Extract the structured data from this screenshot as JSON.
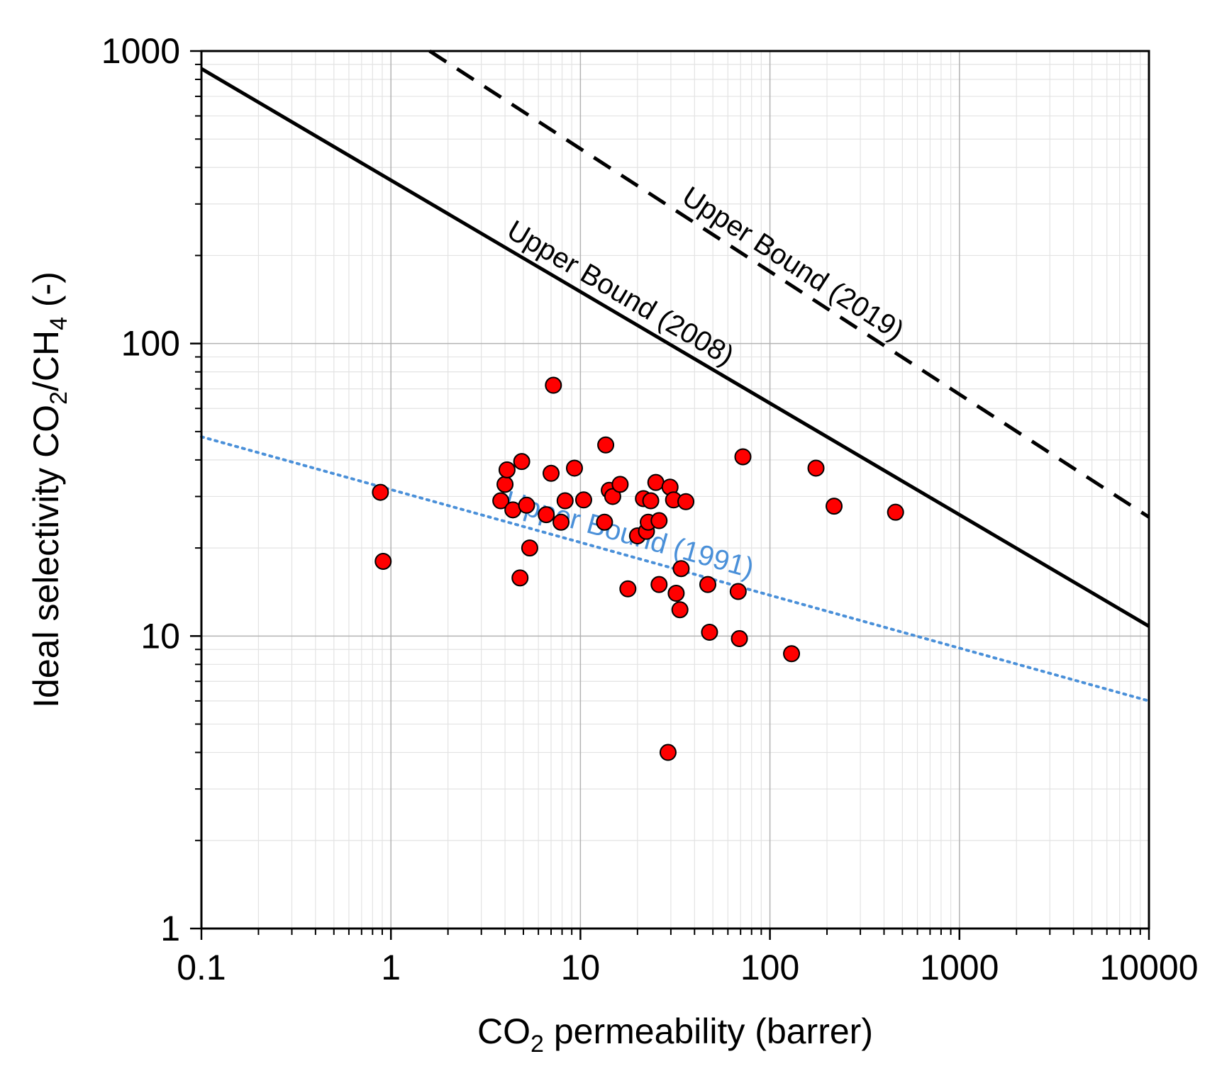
{
  "chart_data": {
    "type": "scatter",
    "xscale": "log",
    "yscale": "log",
    "xlim": [
      0.1,
      10000
    ],
    "ylim": [
      1,
      1000
    ],
    "grid": true,
    "x_ticks": [
      "0.1",
      "1",
      "10",
      "100",
      "1000",
      "10000"
    ],
    "y_ticks": [
      "1",
      "10",
      "100",
      "1000"
    ],
    "xlabel": {
      "pre": "CO",
      "sub": "2",
      "post": " permeability (barrer)"
    },
    "ylabel": {
      "a": "Ideal selectivity CO",
      "b": "2",
      "c": "/CH",
      "d": "4",
      "e": " (-)"
    },
    "upper_bounds": [
      {
        "name": "Upper Bound (1991)",
        "style": "dotted",
        "color": "#4a90d9",
        "points": [
          [
            0.1,
            48
          ],
          [
            10000,
            6
          ]
        ]
      },
      {
        "name": "Upper Bound (2008)",
        "style": "solid",
        "color": "#000000",
        "points": [
          [
            0.1,
            870
          ],
          [
            10000,
            10.8
          ]
        ]
      },
      {
        "name": "Upper Bound (2019)",
        "style": "dashed",
        "color": "#000000",
        "points": [
          [
            1.6,
            1000
          ],
          [
            10000,
            25.5
          ]
        ]
      }
    ],
    "points": [
      [
        0.88,
        31
      ],
      [
        0.91,
        18
      ],
      [
        7.2,
        72
      ],
      [
        3.8,
        29
      ],
      [
        4.0,
        33
      ],
      [
        4.1,
        37
      ],
      [
        4.4,
        27
      ],
      [
        4.9,
        39.5
      ],
      [
        5.2,
        28
      ],
      [
        5.4,
        20
      ],
      [
        4.8,
        15.8
      ],
      [
        6.6,
        26
      ],
      [
        7.0,
        36
      ],
      [
        7.9,
        24.5
      ],
      [
        8.3,
        29
      ],
      [
        9.3,
        37.5
      ],
      [
        10.4,
        29.2
      ],
      [
        13.6,
        45
      ],
      [
        13.4,
        24.5
      ],
      [
        14.2,
        31.5
      ],
      [
        14.8,
        30
      ],
      [
        16.2,
        33
      ],
      [
        17.8,
        14.5
      ],
      [
        20,
        22
      ],
      [
        21.5,
        29.5
      ],
      [
        22.3,
        22.8
      ],
      [
        22.8,
        24.5
      ],
      [
        23.5,
        29
      ],
      [
        25,
        33.5
      ],
      [
        26,
        24.8
      ],
      [
        26,
        15
      ],
      [
        29,
        4
      ],
      [
        29.7,
        32.3
      ],
      [
        31,
        29.2
      ],
      [
        32,
        14
      ],
      [
        33.5,
        12.3
      ],
      [
        34,
        17
      ],
      [
        36,
        28.8
      ],
      [
        47,
        15
      ],
      [
        48,
        10.3
      ],
      [
        68,
        14.2
      ],
      [
        69,
        9.8
      ],
      [
        72,
        41
      ],
      [
        130,
        8.7
      ],
      [
        175,
        37.5
      ],
      [
        218,
        27.8
      ],
      [
        460,
        26.5
      ]
    ],
    "marker_color": "#ff0000"
  }
}
